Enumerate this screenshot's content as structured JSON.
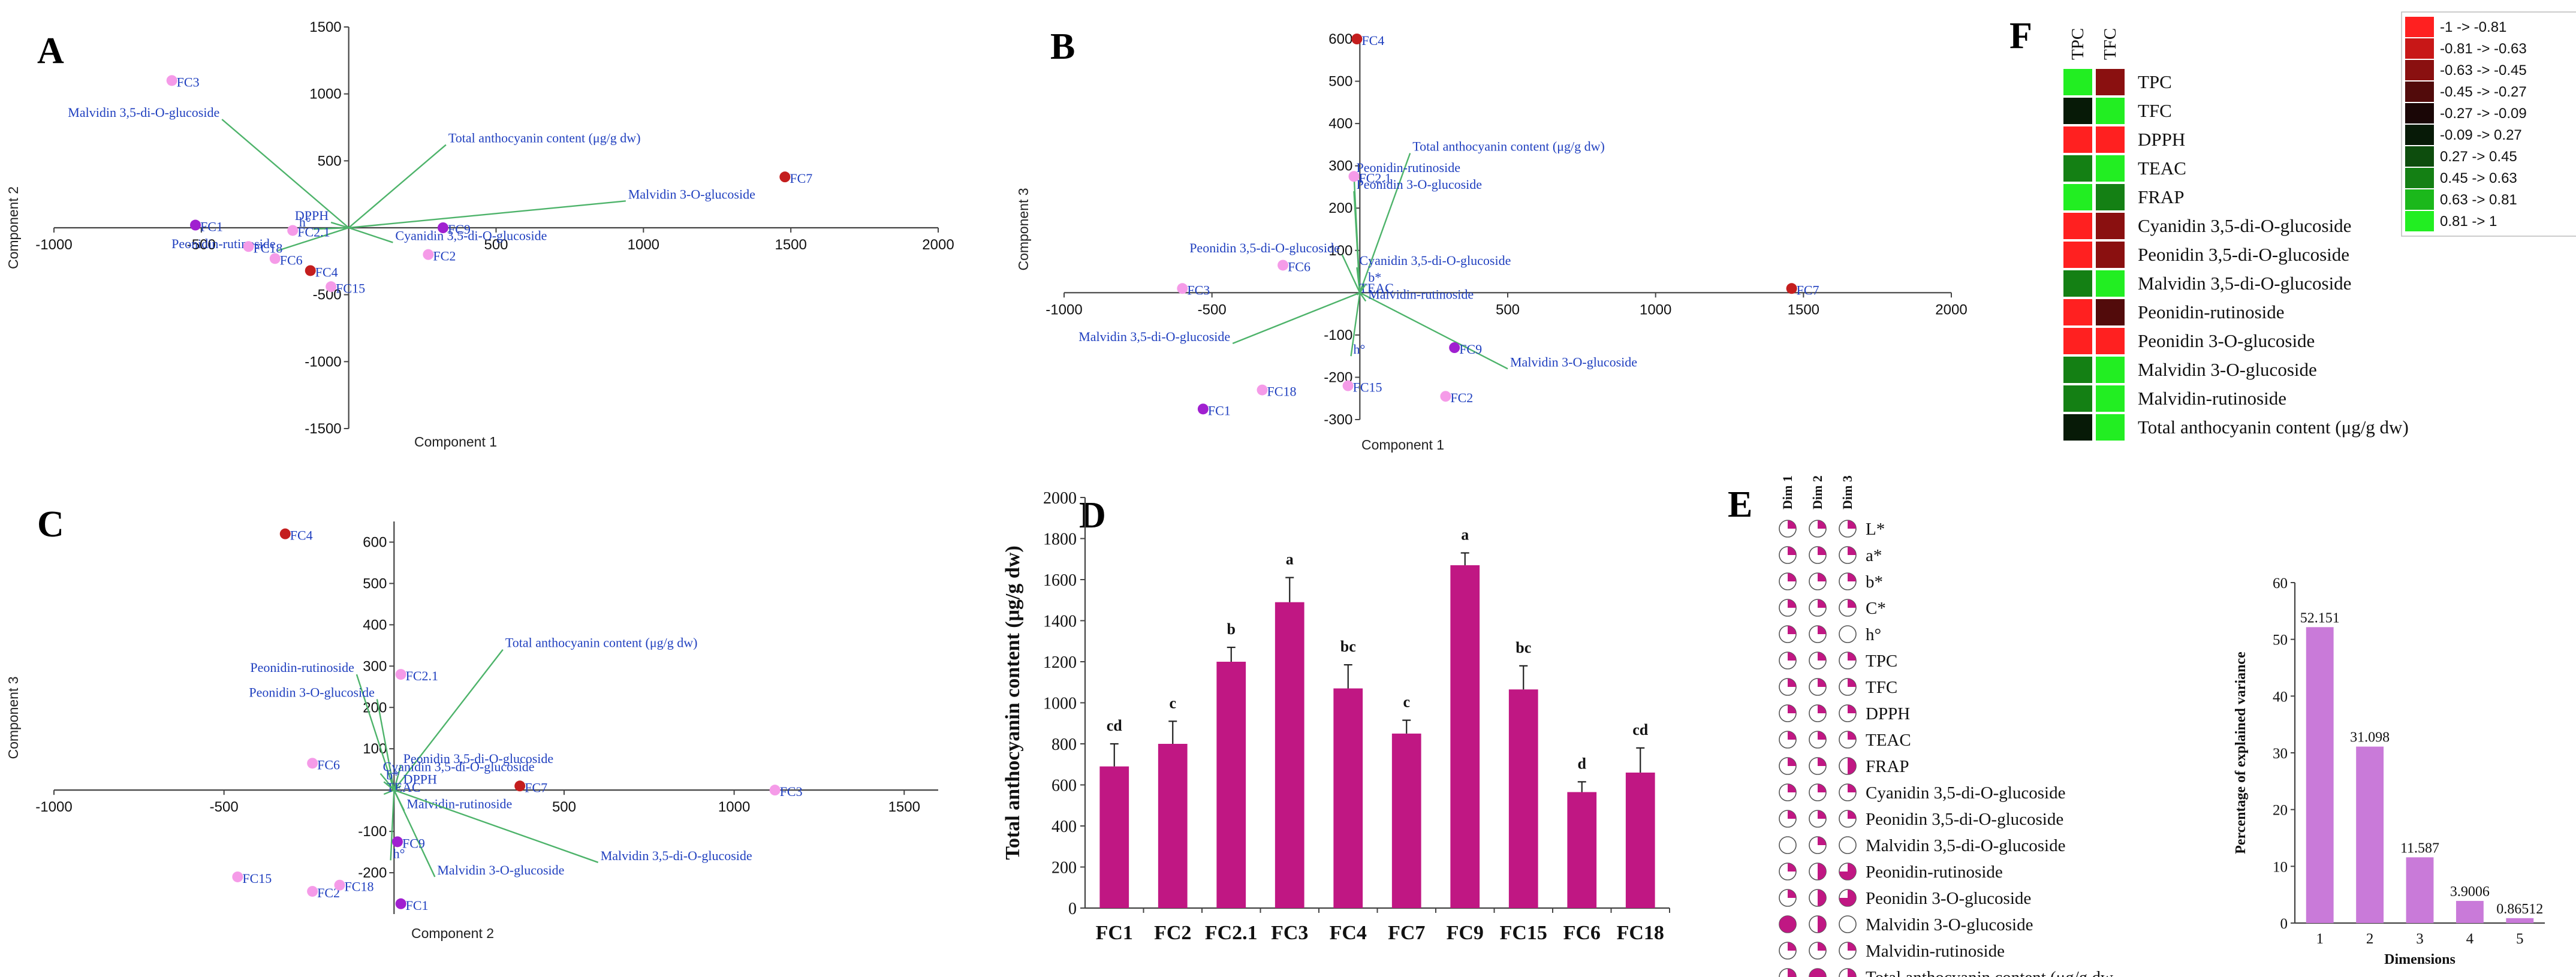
{
  "panels": {
    "A": "A",
    "B": "B",
    "C": "C",
    "D": "D",
    "E": "E",
    "F": "F"
  },
  "colors": {
    "var_line": "#4db36a",
    "label": "#1f3fbf",
    "bar": "#c01783",
    "variance_bar": "#c97ad9",
    "obs_pink": "#f59be8",
    "obs_purple": "#a020d0",
    "obs_red": "#c41e1e"
  },
  "chart_data": [
    {
      "id": "A",
      "type": "scatter",
      "subtype": "biplot",
      "xlabel": "Component 1",
      "ylabel": "Component 2",
      "xlim": [
        -1000,
        2000
      ],
      "ylim": [
        -1500,
        1500
      ],
      "xticks": [
        -1000,
        -500,
        500,
        1000,
        1500,
        2000
      ],
      "yticks": [
        -1500,
        -1000,
        -500,
        500,
        1000,
        1500
      ],
      "xtick_labels": [
        "-1000",
        "-500",
        "500",
        "1000",
        "1500",
        "2000"
      ],
      "ytick_labels": [
        "-1500",
        "-1000",
        "-500",
        "500",
        "1000",
        "1500"
      ],
      "points": [
        {
          "label": "FC3",
          "x": -600,
          "y": 1100,
          "color": "pink"
        },
        {
          "label": "FC7",
          "x": 1480,
          "y": 380,
          "color": "red"
        },
        {
          "label": "FC1",
          "x": -520,
          "y": 20,
          "color": "purple"
        },
        {
          "label": "FC9",
          "x": 320,
          "y": 0,
          "color": "purple"
        },
        {
          "label": "FC2.1",
          "x": -190,
          "y": -20,
          "color": "pink"
        },
        {
          "label": "FC18",
          "x": -340,
          "y": -140,
          "color": "pink"
        },
        {
          "label": "FC6",
          "x": -250,
          "y": -230,
          "color": "pink"
        },
        {
          "label": "FC4",
          "x": -130,
          "y": -320,
          "color": "red"
        },
        {
          "label": "FC15",
          "x": -60,
          "y": -440,
          "color": "pink"
        },
        {
          "label": "FC2",
          "x": 270,
          "y": -200,
          "color": "pink"
        }
      ],
      "vectors": [
        {
          "label": "Malvidin 3,5-di-O-glucoside",
          "x": -430,
          "y": 810
        },
        {
          "label": "Total anthocyanin content (μg/g dw)",
          "x": 330,
          "y": 620
        },
        {
          "label": "Malvidin 3-O-glucoside",
          "x": 940,
          "y": 200
        },
        {
          "label": "DPPH",
          "x": -60,
          "y": 40
        },
        {
          "label": "h°",
          "x": -120,
          "y": -10
        },
        {
          "label": "Peonidin-rutinoside",
          "x": -240,
          "y": -170
        },
        {
          "label": "Cyanidin 3,5-di-O-glucoside",
          "x": 150,
          "y": -110
        }
      ]
    },
    {
      "id": "B",
      "type": "scatter",
      "subtype": "biplot",
      "xlabel": "Component 1",
      "ylabel": "Component 3",
      "xlim": [
        -1000,
        2000
      ],
      "ylim": [
        -300,
        600
      ],
      "xticks": [
        -1000,
        -500,
        500,
        1000,
        1500,
        2000
      ],
      "yticks": [
        -300,
        -200,
        -100,
        100,
        200,
        300,
        400,
        500,
        600
      ],
      "xtick_labels": [
        "-1000",
        "-500",
        "500",
        "1000",
        "1500",
        "2000"
      ],
      "ytick_labels": [
        "-300",
        "-200",
        "-100",
        "100",
        "200",
        "300",
        "400",
        "500",
        "600"
      ],
      "points": [
        {
          "label": "FC4",
          "x": -10,
          "y": 600,
          "color": "red"
        },
        {
          "label": "FC2.1",
          "x": -20,
          "y": 275,
          "color": "pink"
        },
        {
          "label": "FC6",
          "x": -260,
          "y": 65,
          "color": "pink"
        },
        {
          "label": "FC3",
          "x": -600,
          "y": 10,
          "color": "pink"
        },
        {
          "label": "FC7",
          "x": 1460,
          "y": 10,
          "color": "red"
        },
        {
          "label": "FC9",
          "x": 320,
          "y": -130,
          "color": "purple"
        },
        {
          "label": "FC18",
          "x": -330,
          "y": -230,
          "color": "pink"
        },
        {
          "label": "FC15",
          "x": -40,
          "y": -220,
          "color": "pink"
        },
        {
          "label": "FC2",
          "x": 290,
          "y": -245,
          "color": "pink"
        },
        {
          "label": "FC1",
          "x": -530,
          "y": -275,
          "color": "purple"
        }
      ],
      "vectors": [
        {
          "label": "Total anthocyanin content (μg/g dw)",
          "x": 170,
          "y": 330
        },
        {
          "label": "Peonidin-rutinoside",
          "x": -20,
          "y": 280
        },
        {
          "label": "Peonidin 3-O-glucoside",
          "x": -20,
          "y": 240
        },
        {
          "label": "Peonidin 3,5-di-O-glucoside",
          "x": -60,
          "y": 90
        },
        {
          "label": "Cyanidin 3,5-di-O-glucoside",
          "x": -10,
          "y": 60
        },
        {
          "label": "Malvidin 3,5-di-O-glucoside",
          "x": -430,
          "y": -120
        },
        {
          "label": "Malvidin 3-O-glucoside",
          "x": 500,
          "y": -180
        },
        {
          "label": "Malvidin-rutinoside",
          "x": 20,
          "y": -20
        },
        {
          "label": "TEAC",
          "x": -10,
          "y": -5
        },
        {
          "label": "b*",
          "x": 20,
          "y": 20
        },
        {
          "label": "h°",
          "x": -30,
          "y": -150
        }
      ]
    },
    {
      "id": "C",
      "type": "scatter",
      "subtype": "biplot",
      "xlabel": "Component 2",
      "ylabel": "Component 3",
      "xlim": [
        -1000,
        1600
      ],
      "ylim": [
        -300,
        650
      ],
      "xticks": [
        -1000,
        -500,
        500,
        1000,
        1500
      ],
      "yticks": [
        -200,
        -100,
        100,
        200,
        300,
        400,
        500,
        600
      ],
      "xtick_labels": [
        "-1000",
        "-500",
        "500",
        "1000",
        "1500"
      ],
      "ytick_labels": [
        "-200",
        "-100",
        "100",
        "200",
        "300",
        "400",
        "500",
        "600"
      ],
      "points": [
        {
          "label": "FC4",
          "x": -320,
          "y": 620,
          "color": "red"
        },
        {
          "label": "FC2.1",
          "x": 20,
          "y": 280,
          "color": "pink"
        },
        {
          "label": "FC6",
          "x": -240,
          "y": 65,
          "color": "pink"
        },
        {
          "label": "FC7",
          "x": 370,
          "y": 10,
          "color": "red"
        },
        {
          "label": "FC3",
          "x": 1120,
          "y": 0,
          "color": "pink"
        },
        {
          "label": "FC9",
          "x": 10,
          "y": -125,
          "color": "purple"
        },
        {
          "label": "FC15",
          "x": -460,
          "y": -210,
          "color": "pink"
        },
        {
          "label": "FC2",
          "x": -240,
          "y": -245,
          "color": "pink"
        },
        {
          "label": "FC18",
          "x": -160,
          "y": -230,
          "color": "pink"
        },
        {
          "label": "FC1",
          "x": 20,
          "y": -275,
          "color": "purple"
        }
      ],
      "vectors": [
        {
          "label": "Total anthocyanin content (μg/g dw)",
          "x": 320,
          "y": 340
        },
        {
          "label": "Peonidin-rutinoside",
          "x": -110,
          "y": 280
        },
        {
          "label": "Peonidin 3-O-glucoside",
          "x": -50,
          "y": 220
        },
        {
          "label": "Peonidin 3,5-di-O-glucoside",
          "x": 20,
          "y": 60
        },
        {
          "label": "Cyanidin 3,5-di-O-glucoside",
          "x": -40,
          "y": 40
        },
        {
          "label": "DPPH",
          "x": 20,
          "y": 10
        },
        {
          "label": "TEAC",
          "x": -30,
          "y": -10
        },
        {
          "label": "Malvidin-rutinoside",
          "x": 30,
          "y": -50
        },
        {
          "label": "Malvidin 3,5-di-O-glucoside",
          "x": 600,
          "y": -175
        },
        {
          "label": "Malvidin 3-O-glucoside",
          "x": 120,
          "y": -210
        },
        {
          "label": "h°",
          "x": -10,
          "y": -170
        },
        {
          "label": "b*",
          "x": -30,
          "y": 20
        }
      ]
    },
    {
      "id": "D",
      "type": "bar",
      "title": "",
      "xlabel": "",
      "ylabel": "Total anthocyanin content (μg/g dw)",
      "ylim": [
        0,
        2000
      ],
      "yticks": [
        0,
        200,
        400,
        600,
        800,
        1000,
        1200,
        1400,
        1600,
        1800,
        2000
      ],
      "ytick_labels": [
        "0",
        "200",
        "400",
        "600",
        "800",
        "1000",
        "1200",
        "1400",
        "1600",
        "1800",
        "2000"
      ],
      "categories": [
        "FC1",
        "FC2",
        "FC2.1",
        "FC3",
        "FC4",
        "FC7",
        "FC9",
        "FC15",
        "FC6",
        "FC18"
      ],
      "values": [
        690,
        800,
        1200,
        1490,
        1070,
        850,
        1670,
        1065,
        565,
        660
      ],
      "errors": [
        110,
        110,
        70,
        120,
        115,
        65,
        60,
        115,
        50,
        120
      ],
      "groups": [
        "cd",
        "c",
        "b",
        "a",
        "bc",
        "c",
        "a",
        "bc",
        "d",
        "cd"
      ]
    },
    {
      "id": "E-variance",
      "type": "bar",
      "xlabel": "Dimensions",
      "ylabel": "Percentage of explained variance",
      "ylim": [
        0,
        60
      ],
      "yticks": [
        0,
        10,
        20,
        30,
        40,
        50,
        60
      ],
      "ytick_labels": [
        "0",
        "10",
        "20",
        "30",
        "40",
        "50",
        "60"
      ],
      "categories": [
        "1",
        "2",
        "3",
        "4",
        "5"
      ],
      "values": [
        52.151,
        31.098,
        11.587,
        3.9006,
        0.86512
      ],
      "value_labels": [
        "52.151",
        "31.098",
        "11.587",
        "3.9006",
        "0.86512"
      ]
    },
    {
      "id": "E-contributions",
      "type": "table",
      "columns": [
        "Dim 1",
        "Dim 2",
        "Dim 3"
      ],
      "rows": [
        {
          "label": "L*",
          "fractions": [
            0.25,
            0.25,
            0.25
          ]
        },
        {
          "label": "a*",
          "fractions": [
            0.25,
            0.25,
            0.25
          ]
        },
        {
          "label": "b*",
          "fractions": [
            0.25,
            0.25,
            0.25
          ]
        },
        {
          "label": "C*",
          "fractions": [
            0.25,
            0.25,
            0.25
          ]
        },
        {
          "label": "h°",
          "fractions": [
            0.25,
            0.25,
            0
          ]
        },
        {
          "label": "TPC",
          "fractions": [
            0.25,
            0.25,
            0.25
          ]
        },
        {
          "label": "TFC",
          "fractions": [
            0.25,
            0.25,
            0.25
          ]
        },
        {
          "label": "DPPH",
          "fractions": [
            0.25,
            0.25,
            0.25
          ]
        },
        {
          "label": "TEAC",
          "fractions": [
            0.25,
            0.25,
            0.25
          ]
        },
        {
          "label": "FRAP",
          "fractions": [
            0.25,
            0.25,
            0.5
          ]
        },
        {
          "label": "Cyanidin 3,5-di-O-glucoside",
          "fractions": [
            0.25,
            0.25,
            0.25
          ]
        },
        {
          "label": "Peonidin 3,5-di-O-glucoside",
          "fractions": [
            0.25,
            0.25,
            0.25
          ]
        },
        {
          "label": "Malvidin 3,5-di-O-glucoside",
          "fractions": [
            0,
            0.25,
            0
          ]
        },
        {
          "label": "Peonidin-rutinoside",
          "fractions": [
            0.25,
            0.5,
            0.75
          ]
        },
        {
          "label": "Peonidin 3-O-glucoside",
          "fractions": [
            0.25,
            0.5,
            0.75
          ]
        },
        {
          "label": "Malvidin 3-O-glucoside",
          "fractions": [
            1,
            0.5,
            0
          ]
        },
        {
          "label": "Malvidin-rutinoside",
          "fractions": [
            0.25,
            0.25,
            0.25
          ]
        },
        {
          "label": "Total anthocyanin content (μg/g dw",
          "fractions": [
            0.75,
            1,
            0.75
          ]
        }
      ]
    },
    {
      "id": "F",
      "type": "heatmap",
      "columns": [
        "TPC",
        "TFC"
      ],
      "rows": [
        "TPC",
        "TFC",
        "DPPH",
        "TEAC",
        "FRAP",
        "Cyanidin 3,5-di-O-glucoside",
        "Peonidin 3,5-di-O-glucoside",
        "Malvidin 3,5-di-O-glucoside",
        "Peonidin-rutinoside",
        "Peonidin 3-O-glucoside",
        "Malvidin 3-O-glucoside",
        "Malvidin-rutinoside",
        "Total anthocyanin content (μg/g dw)"
      ],
      "values": [
        [
          1,
          -0.6
        ],
        [
          0.1,
          1
        ],
        [
          -0.9,
          -0.9
        ],
        [
          0.6,
          0.9
        ],
        [
          0.9,
          0.6
        ],
        [
          -0.9,
          -0.6
        ],
        [
          -0.9,
          -0.5
        ],
        [
          0.6,
          0.9
        ],
        [
          -0.9,
          -0.4
        ],
        [
          -0.9,
          -0.9
        ],
        [
          0.6,
          0.9
        ],
        [
          0.6,
          0.9
        ],
        [
          -0.05,
          0.9
        ]
      ],
      "legend": {
        "labels": [
          "-1 -> -0.81",
          "-0.81 -> -0.63",
          "-0.63 -> -0.45",
          "-0.45 -> -0.27",
          "-0.27 -> -0.09",
          "-0.09 -> 0.27",
          "0.27 -> 0.45",
          "0.45 -> 0.63",
          "0.63 -> 0.81",
          "0.81 -> 1"
        ],
        "colors": [
          "#ff2020",
          "#c81717",
          "#8a1010",
          "#520b0b",
          "#1a0606",
          "#071a07",
          "#0d4d0d",
          "#148014",
          "#1bb81b",
          "#22ee22"
        ]
      }
    }
  ]
}
